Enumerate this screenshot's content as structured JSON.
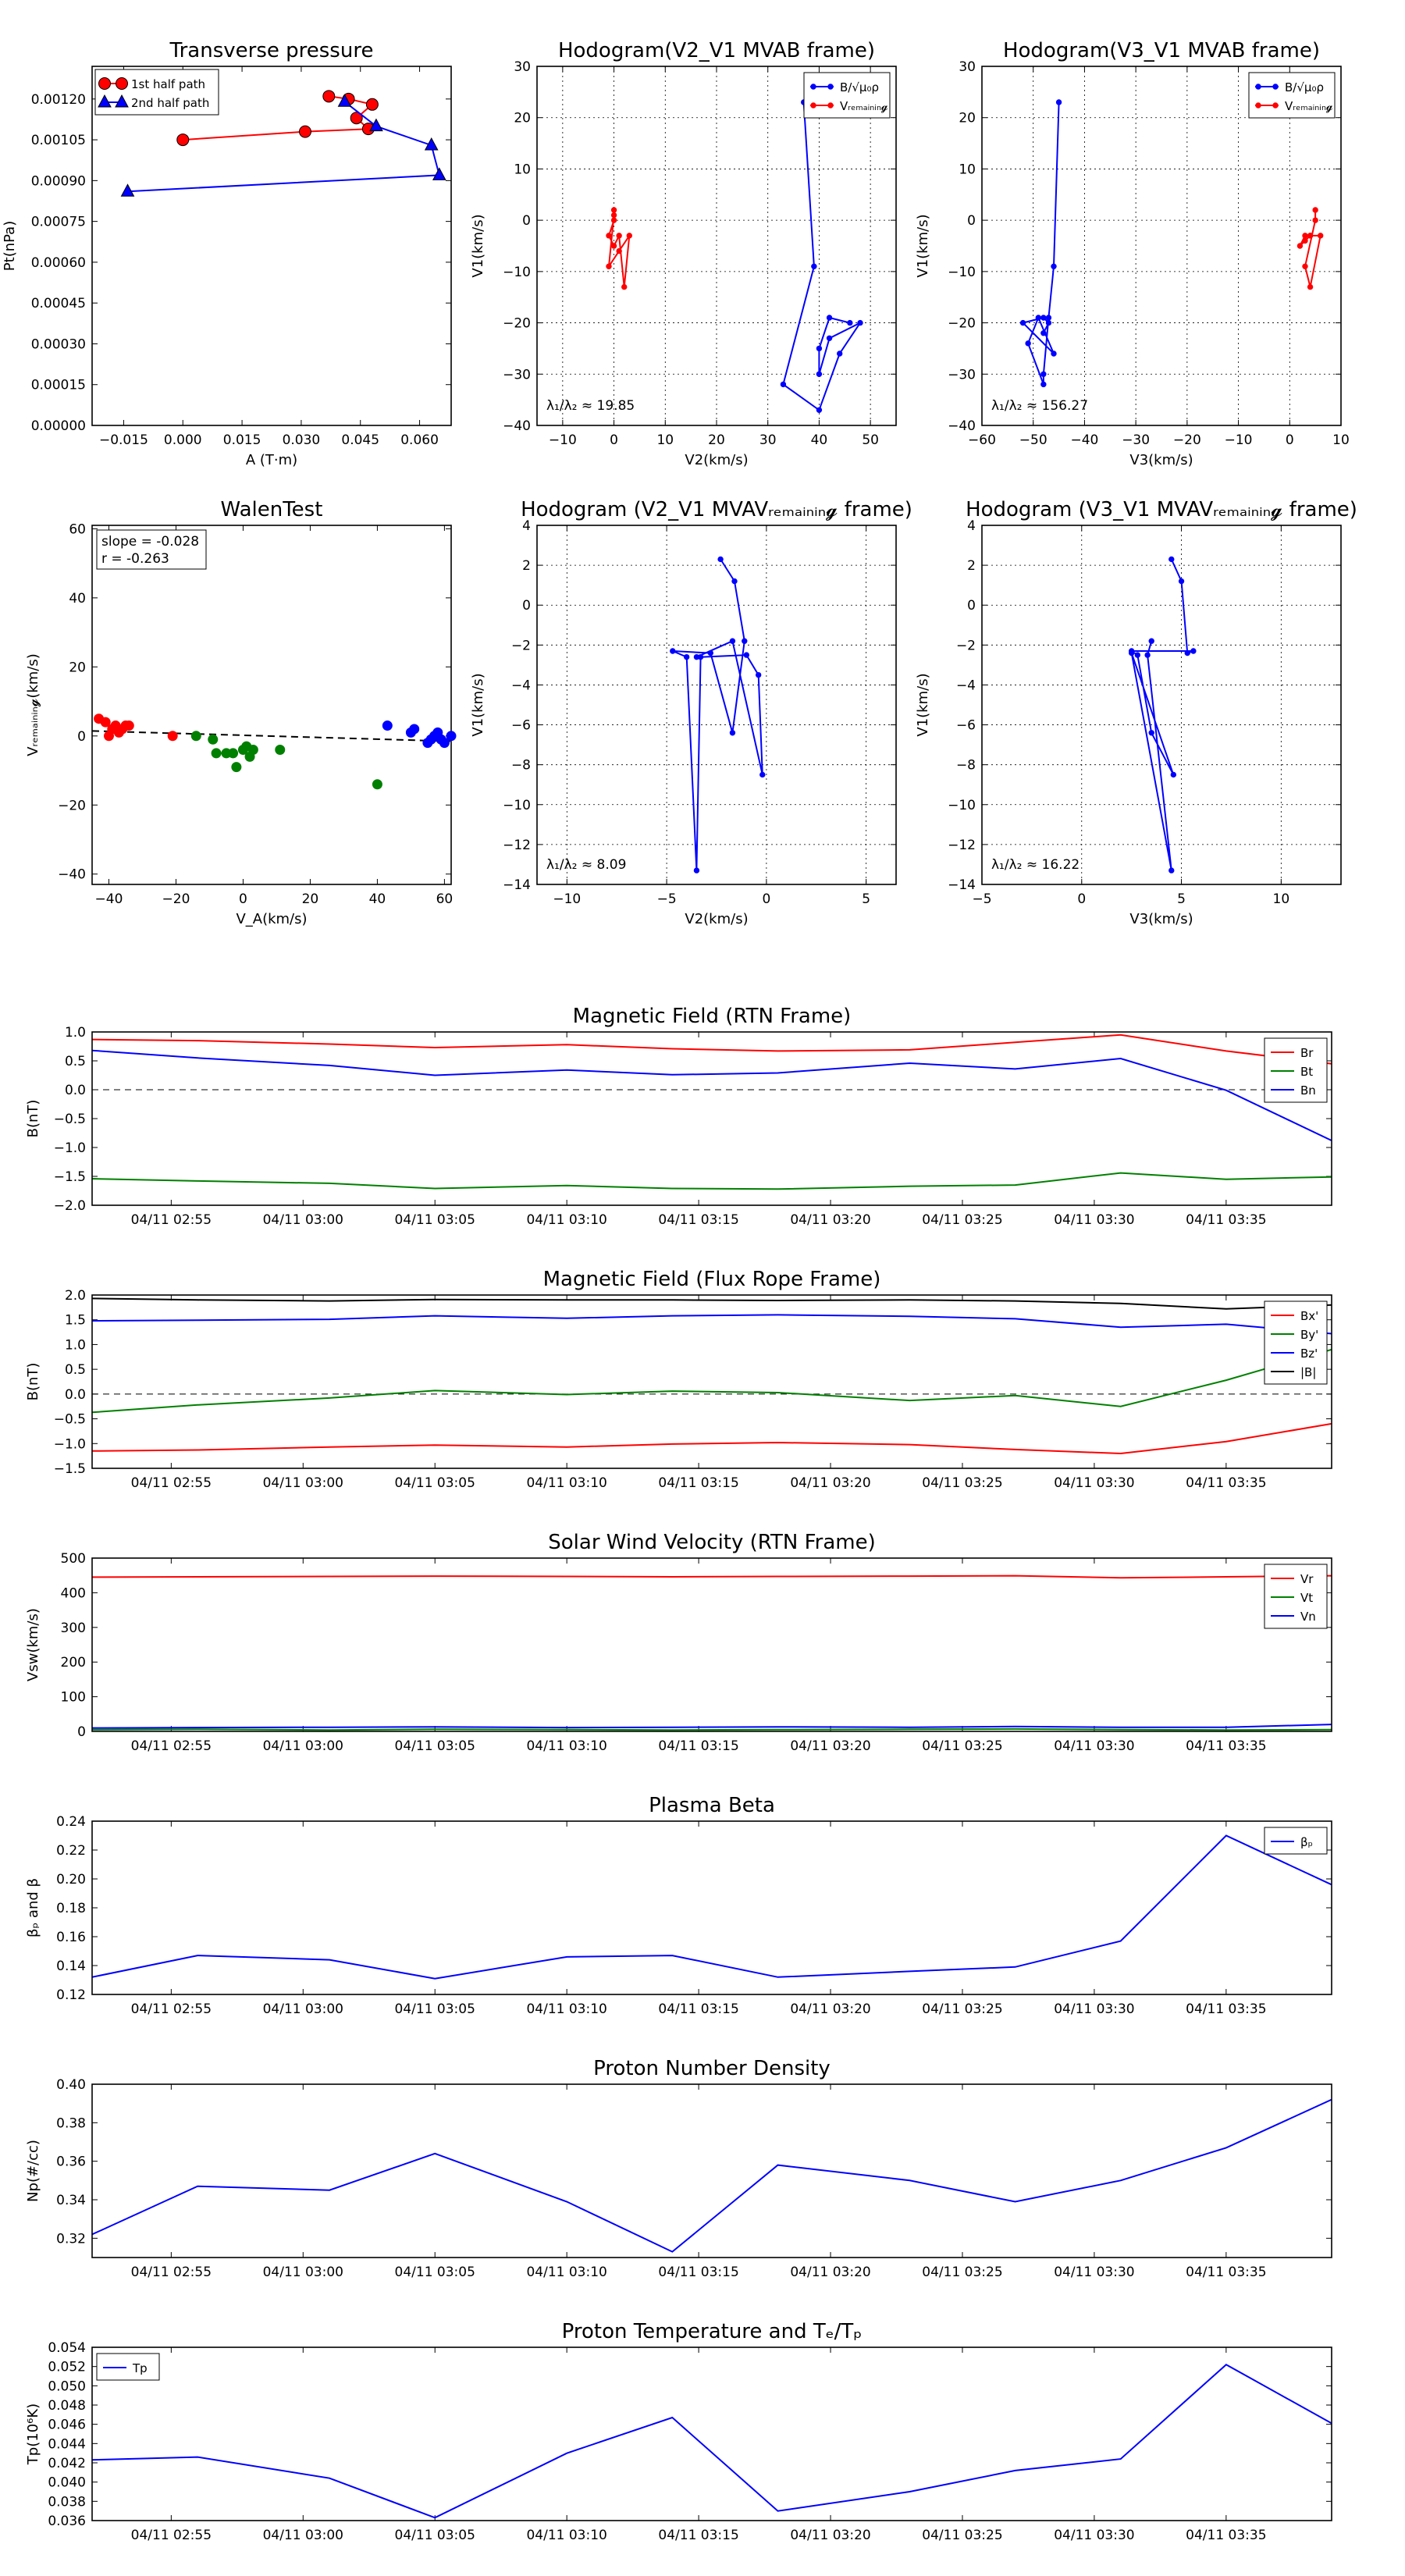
{
  "colors": {
    "red": "#ff0000",
    "green": "#008000",
    "blue": "#0000ff",
    "black": "#000000",
    "frame": "#000000"
  },
  "chart_data": [
    {
      "id": "pt",
      "type": "scatter",
      "title": "Transverse pressure",
      "xlabel": "A (T·m)",
      "ylabel": "Pt(nPa)",
      "xlim": [
        -0.023,
        0.068
      ],
      "ylim": [
        0,
        0.00132
      ],
      "xticks": [
        -0.015,
        0.0,
        0.015,
        0.03,
        0.045,
        0.06
      ],
      "xtick_labels": [
        "−0.015",
        "0.000",
        "0.015",
        "0.030",
        "0.045",
        "0.060"
      ],
      "yticks": [
        0,
        0.00015,
        0.0003,
        0.00045,
        0.0006,
        0.00075,
        0.0009,
        0.00105,
        0.0012
      ],
      "ytick_labels": [
        "0.00000",
        "0.00015",
        "0.00030",
        "0.00045",
        "0.00060",
        "0.00075",
        "0.00090",
        "0.00105",
        "0.00120"
      ],
      "legend": "top-left",
      "series": [
        {
          "name": "1st half path",
          "color": "red",
          "marker": "circle",
          "x": [
            0.0,
            0.031,
            0.047,
            0.044,
            0.048,
            0.042,
            0.037
          ],
          "y": [
            0.00105,
            0.00108,
            0.00109,
            0.00113,
            0.00118,
            0.0012,
            0.00121
          ]
        },
        {
          "name": "2nd half path",
          "color": "blue",
          "marker": "triangle",
          "x": [
            0.041,
            0.049,
            0.063,
            0.065,
            -0.014
          ],
          "y": [
            0.00119,
            0.0011,
            0.00103,
            0.00092,
            0.00086
          ]
        }
      ]
    },
    {
      "id": "h1",
      "type": "line",
      "title": "Hodogram(V2_V1 MVAB frame)",
      "xlabel": "V2(km/s)",
      "ylabel": "V1(km/s)",
      "xlim": [
        -15,
        55
      ],
      "ylim": [
        -40,
        30
      ],
      "xticks": [
        -10,
        0,
        10,
        20,
        30,
        40,
        50
      ],
      "xtick_labels": [
        "−10",
        "0",
        "10",
        "20",
        "30",
        "40",
        "50"
      ],
      "yticks": [
        -40,
        -30,
        -20,
        -10,
        0,
        10,
        20,
        30
      ],
      "ytick_labels": [
        "−40",
        "−30",
        "−20",
        "−10",
        "0",
        "10",
        "20",
        "30"
      ],
      "grid": true,
      "legend": "top-right",
      "annotation": "λ₁/λ₂ ≈ 19.85",
      "series": [
        {
          "name": "B/√μ₀ρ",
          "color": "blue",
          "x": [
            37,
            39,
            33,
            40,
            44,
            48,
            42,
            40,
            40,
            42,
            46
          ],
          "y": [
            23,
            -9,
            -32,
            -37,
            -26,
            -20,
            -23,
            -30,
            -25,
            -19,
            -20
          ]
        },
        {
          "name": "Vᵣₑₘₐᵢₙᵢₙ𝓰",
          "color": "red",
          "x": [
            0,
            0,
            -1,
            1,
            3,
            2,
            1,
            0,
            -1,
            0
          ],
          "y": [
            2,
            1,
            -9,
            -6,
            -3,
            -13,
            -3,
            -5,
            -3,
            0
          ]
        }
      ]
    },
    {
      "id": "h2",
      "type": "line",
      "title": "Hodogram(V3_V1 MVAB frame)",
      "xlabel": "V3(km/s)",
      "ylabel": "V1(km/s)",
      "xlim": [
        -60,
        10
      ],
      "ylim": [
        -40,
        30
      ],
      "xticks": [
        -60,
        -50,
        -40,
        -30,
        -20,
        -10,
        0,
        10
      ],
      "xtick_labels": [
        "−60",
        "−50",
        "−40",
        "−30",
        "−20",
        "−10",
        "0",
        "10"
      ],
      "yticks": [
        -40,
        -30,
        -20,
        -10,
        0,
        10,
        20,
        30
      ],
      "ytick_labels": [
        "−40",
        "−30",
        "−20",
        "−10",
        "0",
        "10",
        "20",
        "30"
      ],
      "grid": true,
      "legend": "top-right",
      "annotation": "λ₁/λ₂ ≈ 156.27",
      "series": [
        {
          "name": "B/√μ₀ρ",
          "color": "blue",
          "x": [
            -45,
            -46,
            -47,
            -48,
            -48,
            -51,
            -49,
            -46,
            -52,
            -48,
            -47,
            -48
          ],
          "y": [
            23,
            -9,
            -19,
            -30,
            -32,
            -24,
            -19,
            -26,
            -20,
            -19,
            -20,
            -22
          ]
        },
        {
          "name": "Vᵣₑₘₐᵢₙᵢₙ𝓰",
          "color": "red",
          "x": [
            5,
            5,
            3,
            4,
            6,
            4,
            3,
            2,
            3,
            4
          ],
          "y": [
            2,
            0,
            -9,
            -13,
            -3,
            -3,
            -3,
            -5,
            -4,
            -3
          ]
        }
      ]
    },
    {
      "id": "walen",
      "type": "scatter",
      "title": "WalenTest",
      "xlabel": "V_A(km/s)",
      "ylabel": "Vᵣₑₘₐᵢₙᵢₙ𝓰(km/s)",
      "xlim": [
        -45,
        62
      ],
      "ylim": [
        -43,
        61
      ],
      "xticks": [
        -40,
        -20,
        0,
        20,
        40,
        60
      ],
      "xtick_labels": [
        "−40",
        "−20",
        "0",
        "20",
        "40",
        "60"
      ],
      "yticks": [
        -40,
        -20,
        0,
        20,
        40,
        60
      ],
      "ytick_labels": [
        "−40",
        "−20",
        "0",
        "20",
        "40",
        "60"
      ],
      "annotation_lines": [
        "slope = -0.028",
        "r = -0.263"
      ],
      "fit": {
        "slope": -0.028,
        "intercept": 0.2
      },
      "series": [
        {
          "color": "red",
          "x": [
            -43,
            -41,
            -39,
            -38,
            -37,
            -36,
            -35,
            -34,
            -40,
            -21
          ],
          "y": [
            5,
            4,
            2,
            3,
            1,
            2,
            3,
            3,
            0,
            0
          ]
        },
        {
          "color": "green",
          "x": [
            -14,
            -9,
            -8,
            -5,
            -3,
            -2,
            0,
            1,
            2,
            3,
            11,
            40
          ],
          "y": [
            0,
            -1,
            -5,
            -5,
            -5,
            -9,
            -4,
            -3,
            -6,
            -4,
            -4,
            -14
          ]
        },
        {
          "color": "blue",
          "x": [
            43,
            50,
            51,
            55,
            56,
            57,
            58,
            59,
            60,
            62
          ],
          "y": [
            3,
            1,
            2,
            -2,
            -1,
            0,
            1,
            -1,
            -2,
            0
          ]
        }
      ]
    },
    {
      "id": "h3",
      "type": "line",
      "title": "Hodogram (V2_V1 MVAVᵣₑₘₐᵢₙᵢₙ𝓰 frame)",
      "xlabel": "V2(km/s)",
      "ylabel": "V1(km/s)",
      "xlim": [
        -11.5,
        6.5
      ],
      "ylim": [
        -14,
        4
      ],
      "xticks": [
        -10,
        -5,
        0,
        5
      ],
      "xtick_labels": [
        "−10",
        "−5",
        "0",
        "5"
      ],
      "yticks": [
        -14,
        -12,
        -10,
        -8,
        -6,
        -4,
        -2,
        0,
        2,
        4
      ],
      "ytick_labels": [
        "−14",
        "−12",
        "−10",
        "−8",
        "−6",
        "−4",
        "−2",
        "0",
        "2",
        "4"
      ],
      "grid": true,
      "annotation": "λ₁/λ₂ ≈ 8.09",
      "series": [
        {
          "color": "blue",
          "x": [
            -2.3,
            -1.6,
            -1.1,
            -1.7,
            -2.8,
            -4.7,
            -4.0,
            -3.5,
            -3.3,
            -1.0,
            -0.4,
            -0.2,
            -1.7,
            -3.5
          ],
          "y": [
            2.3,
            1.2,
            -1.8,
            -6.4,
            -2.4,
            -2.3,
            -2.6,
            -13.3,
            -2.6,
            -2.5,
            -3.5,
            -8.5,
            -1.8,
            -2.6
          ]
        }
      ]
    },
    {
      "id": "h4",
      "type": "line",
      "title": "Hodogram (V3_V1 MVAVᵣₑₘₐᵢₙᵢₙ𝓰 frame)",
      "xlabel": "V3(km/s)",
      "ylabel": "V1(km/s)",
      "xlim": [
        -5,
        13
      ],
      "ylim": [
        -14,
        4
      ],
      "xticks": [
        -5,
        0,
        5,
        10
      ],
      "xtick_labels": [
        "−5",
        "0",
        "5",
        "10"
      ],
      "yticks": [
        -14,
        -12,
        -10,
        -8,
        -6,
        -4,
        -2,
        0,
        2,
        4
      ],
      "ytick_labels": [
        "−14",
        "−12",
        "−10",
        "−8",
        "−6",
        "−4",
        "−2",
        "0",
        "2",
        "4"
      ],
      "grid": true,
      "annotation": "λ₁/λ₂ ≈ 16.22",
      "series": [
        {
          "color": "blue",
          "x": [
            4.5,
            5.0,
            5.3,
            5.6,
            2.5,
            2.8,
            3.5,
            4.6,
            2.5,
            4.5,
            3.3,
            3.5
          ],
          "y": [
            2.3,
            1.2,
            -2.4,
            -2.3,
            -2.3,
            -2.5,
            -6.4,
            -8.5,
            -2.4,
            -13.3,
            -2.5,
            -1.8
          ]
        }
      ]
    },
    {
      "id": "bfield",
      "type": "line",
      "title": "Magnetic Field (RTN Frame)",
      "ylabel": "B(nT)",
      "ylim": [
        -2.0,
        1.0
      ],
      "yticks": [
        -2.0,
        -1.5,
        -1.0,
        -0.5,
        0.0,
        0.5,
        1.0
      ],
      "ytick_labels": [
        "−2.0",
        "−1.5",
        "−1.0",
        "−0.5",
        "0.0",
        "0.5",
        "1.0"
      ],
      "zero_line": true,
      "legend": "top-right",
      "series": [
        {
          "name": "Br",
          "color": "red",
          "values": [
            0.87,
            0.85,
            0.79,
            0.73,
            0.78,
            0.71,
            0.67,
            0.69,
            0.82,
            0.95,
            0.67,
            0.45
          ]
        },
        {
          "name": "Bt",
          "color": "green",
          "values": [
            -1.54,
            -1.58,
            -1.62,
            -1.71,
            -1.66,
            -1.71,
            -1.72,
            -1.67,
            -1.65,
            -1.44,
            -1.55,
            -1.51
          ]
        },
        {
          "name": "Bn",
          "color": "blue",
          "values": [
            0.68,
            0.55,
            0.42,
            0.25,
            0.34,
            0.26,
            0.29,
            0.46,
            0.36,
            0.54,
            -0.01,
            -0.88
          ]
        }
      ]
    },
    {
      "id": "bflux",
      "type": "line",
      "title": "Magnetic Field (Flux Rope Frame)",
      "ylabel": "B(nT)",
      "ylim": [
        -1.5,
        2.0
      ],
      "yticks": [
        -1.5,
        -1.0,
        -0.5,
        0.0,
        0.5,
        1.0,
        1.5,
        2.0
      ],
      "ytick_labels": [
        "−1.5",
        "−1.0",
        "−0.5",
        "0.0",
        "0.5",
        "1.0",
        "1.5",
        "2.0"
      ],
      "zero_line": true,
      "legend": "top-right",
      "series": [
        {
          "name": "Bx'",
          "color": "red",
          "values": [
            -1.15,
            -1.13,
            -1.07,
            -1.03,
            -1.07,
            -1.01,
            -0.98,
            -1.02,
            -1.12,
            -1.2,
            -0.96,
            -0.6
          ]
        },
        {
          "name": "By'",
          "color": "green",
          "values": [
            -0.37,
            -0.22,
            -0.08,
            0.07,
            -0.01,
            0.06,
            0.03,
            -0.13,
            -0.03,
            -0.25,
            0.28,
            0.9
          ]
        },
        {
          "name": "Bz'",
          "color": "blue",
          "values": [
            1.48,
            1.49,
            1.51,
            1.58,
            1.53,
            1.58,
            1.6,
            1.57,
            1.52,
            1.35,
            1.41,
            1.22
          ]
        },
        {
          "name": "|B|",
          "color": "black",
          "values": [
            1.93,
            1.9,
            1.88,
            1.91,
            1.9,
            1.9,
            1.89,
            1.9,
            1.88,
            1.83,
            1.72,
            1.8
          ]
        }
      ]
    },
    {
      "id": "vel",
      "type": "line",
      "title": "Solar Wind Velocity (RTN Frame)",
      "ylabel": "Vsw(km/s)",
      "ylim": [
        0,
        500
      ],
      "yticks": [
        0,
        100,
        200,
        300,
        400,
        500
      ],
      "ytick_labels": [
        "0",
        "100",
        "200",
        "300",
        "400",
        "500"
      ],
      "legend": "top-right",
      "series": [
        {
          "name": "Vr",
          "color": "red",
          "values": [
            445,
            446,
            447,
            448,
            447,
            446,
            447,
            448,
            449,
            443,
            446,
            449
          ]
        },
        {
          "name": "Vt",
          "color": "green",
          "values": [
            5,
            6,
            4,
            6,
            5,
            4,
            5,
            6,
            7,
            5,
            4,
            5
          ]
        },
        {
          "name": "Vn",
          "color": "blue",
          "values": [
            10,
            11,
            12,
            13,
            11,
            12,
            13,
            12,
            14,
            12,
            12,
            20
          ]
        }
      ]
    },
    {
      "id": "beta",
      "type": "line",
      "title": "Plasma Beta",
      "ylabel": "βₚ and β",
      "ylim": [
        0.12,
        0.24
      ],
      "yticks": [
        0.12,
        0.14,
        0.16,
        0.18,
        0.2,
        0.22,
        0.24
      ],
      "ytick_labels": [
        "0.12",
        "0.14",
        "0.16",
        "0.18",
        "0.20",
        "0.22",
        "0.24"
      ],
      "legend": "top-right",
      "series": [
        {
          "name": "βₚ",
          "color": "blue",
          "values": [
            0.132,
            0.147,
            0.144,
            0.131,
            0.146,
            0.147,
            0.132,
            0.136,
            0.139,
            0.157,
            0.23,
            0.196
          ]
        }
      ]
    },
    {
      "id": "np",
      "type": "line",
      "title": "Proton Number Density",
      "ylabel": "Np(#/cc)",
      "ylim": [
        0.31,
        0.4
      ],
      "yticks": [
        0.32,
        0.34,
        0.36,
        0.38,
        0.4
      ],
      "ytick_labels": [
        "0.32",
        "0.34",
        "0.36",
        "0.38",
        "0.40"
      ],
      "series": [
        {
          "color": "blue",
          "values": [
            0.322,
            0.347,
            0.345,
            0.364,
            0.339,
            0.313,
            0.358,
            0.35,
            0.339,
            0.35,
            0.367,
            0.392
          ]
        }
      ]
    },
    {
      "id": "tp",
      "type": "line",
      "title": "Proton Temperature and Tₑ/Tₚ",
      "ylabel": "Tp(10⁶K)",
      "ylim": [
        0.036,
        0.054
      ],
      "yticks": [
        0.036,
        0.038,
        0.04,
        0.042,
        0.044,
        0.046,
        0.048,
        0.05,
        0.052,
        0.054
      ],
      "ytick_labels": [
        "0.036",
        "0.038",
        "0.040",
        "0.042",
        "0.044",
        "0.046",
        "0.048",
        "0.050",
        "0.052",
        "0.054"
      ],
      "legend": "top-left",
      "series": [
        {
          "name": "Tp",
          "color": "blue",
          "values": [
            0.0423,
            0.0426,
            0.0404,
            0.0363,
            0.043,
            0.0467,
            0.037,
            0.039,
            0.0412,
            0.0424,
            0.0522,
            0.0461
          ]
        }
      ]
    }
  ],
  "time_axis": {
    "samples": [
      "02:52",
      "02:56",
      "03:01",
      "03:05",
      "03:10",
      "03:14",
      "03:18",
      "03:23",
      "03:27",
      "03:31",
      "03:35",
      "03:39"
    ],
    "xlim": [
      "02:52",
      "03:39"
    ],
    "ticks": [
      "02:55",
      "03:00",
      "03:05",
      "03:10",
      "03:15",
      "03:20",
      "03:25",
      "03:30",
      "03:35"
    ],
    "tick_labels": [
      "04/11 02:55",
      "04/11 03:00",
      "04/11 03:05",
      "04/11 03:10",
      "04/11 03:15",
      "04/11 03:20",
      "04/11 03:25",
      "04/11 03:30",
      "04/11 03:35"
    ]
  }
}
